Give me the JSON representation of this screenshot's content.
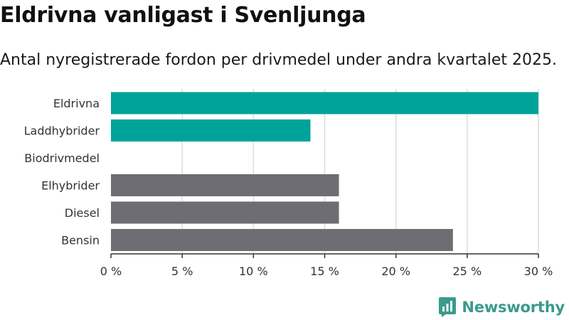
{
  "title": "Eldrivna vanligast i Svenljunga",
  "subtitle": "Antal nyregistrerade fordon per drivmedel under andra kvartalet 2025.",
  "brand": {
    "name": "Newsworthy",
    "icon": "newsworthy-logo-icon",
    "color": "#3a9a8c"
  },
  "colors": {
    "highlight": "#00a39a",
    "other": "#6e6d73",
    "grid": "#dddddd",
    "axis": "#333333"
  },
  "chart_data": {
    "type": "bar",
    "orientation": "horizontal",
    "categories": [
      "Eldrivna",
      "Laddhybrider",
      "Biodrivmedel",
      "Elhybrider",
      "Diesel",
      "Bensin"
    ],
    "values": [
      30,
      14,
      0,
      16,
      16,
      24
    ],
    "highlight": [
      true,
      true,
      false,
      false,
      false,
      false
    ],
    "unit": "%",
    "xlim": [
      0,
      30
    ],
    "xticks": [
      0,
      5,
      10,
      15,
      20,
      25,
      30
    ],
    "xtick_labels": [
      "0 %",
      "5 %",
      "10 %",
      "15 %",
      "20 %",
      "25 %",
      "30 %"
    ],
    "xlabel": "",
    "ylabel": "",
    "grid": true,
    "legend": "none"
  }
}
